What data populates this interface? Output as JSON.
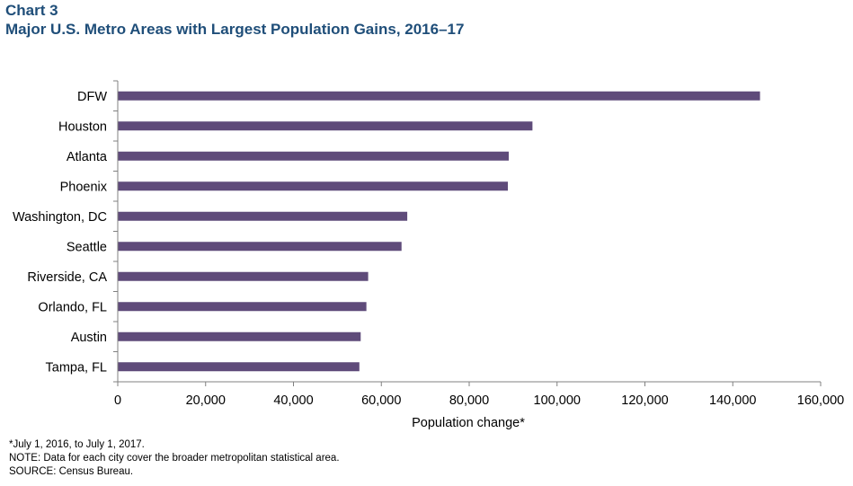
{
  "header": {
    "chart_label": "Chart 3",
    "title": "Major U.S. Metro Areas with Largest Population Gains, 2016–17"
  },
  "chart_data": {
    "type": "bar",
    "orientation": "horizontal",
    "categories": [
      "DFW",
      "Houston",
      "Atlanta",
      "Phoenix",
      "Washington, DC",
      "Seattle",
      "Riverside, CA",
      "Orlando, FL",
      "Austin",
      "Tampa, FL"
    ],
    "values": [
      146200,
      94400,
      89000,
      88800,
      65900,
      64600,
      57000,
      56600,
      55300,
      55000
    ],
    "xlabel": "Population change*",
    "ylabel": "",
    "xlim": [
      0,
      160000
    ],
    "xticks": [
      0,
      20000,
      40000,
      60000,
      80000,
      100000,
      120000,
      140000,
      160000
    ],
    "xtick_labels": [
      "0",
      "20,000",
      "40,000",
      "60,000",
      "80,000",
      "100,000",
      "120,000",
      "140,000",
      "160,000"
    ],
    "bar_color": "#5f4b7a",
    "grid": false,
    "legend": "none"
  },
  "notes": {
    "footnote": "*July 1, 2016, to July 1, 2017.",
    "note": "NOTE: Data for each city cover the broader metropolitan statistical area.",
    "source": "SOURCE: Census Bureau."
  }
}
